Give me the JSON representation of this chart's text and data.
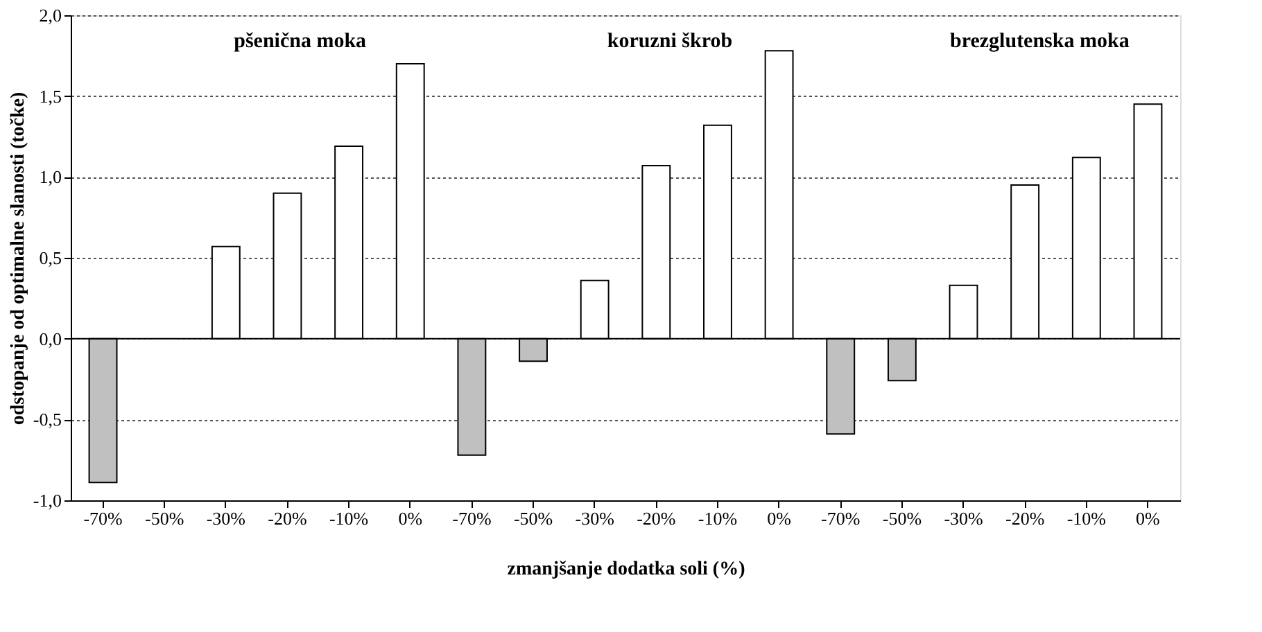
{
  "chart_data": {
    "type": "bar",
    "xlabel": "zmanjšanje dodatka soli (%)",
    "ylabel": "odstopanje od optimalne slanosti (točke)",
    "categories": [
      "-70%",
      "-50%",
      "-30%",
      "-20%",
      "-10%",
      "0%",
      "-70%",
      "-50%",
      "-30%",
      "-20%",
      "-10%",
      "0%",
      "-70%",
      "-50%",
      "-30%",
      "-20%",
      "-10%",
      "0%"
    ],
    "values": [
      -0.89,
      0.0,
      0.57,
      0.9,
      1.19,
      1.7,
      -0.72,
      -0.14,
      0.36,
      1.07,
      1.32,
      1.78,
      -0.59,
      -0.26,
      0.33,
      0.95,
      1.12,
      1.45
    ],
    "colors": [
      "#c0c0c0",
      "#c0c0c0",
      "#ffffff",
      "#ffffff",
      "#ffffff",
      "#ffffff",
      "#c0c0c0",
      "#c0c0c0",
      "#ffffff",
      "#ffffff",
      "#ffffff",
      "#ffffff",
      "#c0c0c0",
      "#c0c0c0",
      "#ffffff",
      "#ffffff",
      "#ffffff",
      "#ffffff"
    ],
    "annotations": [
      "pšenična moka",
      "koruzni škrob",
      "brezglutenska moka"
    ],
    "ylim": [
      -1.0,
      2.0
    ],
    "yticks": [
      {
        "value": -1.0,
        "label": "-1,0"
      },
      {
        "value": -0.5,
        "label": "-0,5"
      },
      {
        "value": 0.0,
        "label": "0,0"
      },
      {
        "value": 0.5,
        "label": "0,5"
      },
      {
        "value": 1.0,
        "label": "1,0"
      },
      {
        "value": 1.5,
        "label": "1,5"
      },
      {
        "value": 2.0,
        "label": "2,0"
      }
    ],
    "grid": "y"
  }
}
